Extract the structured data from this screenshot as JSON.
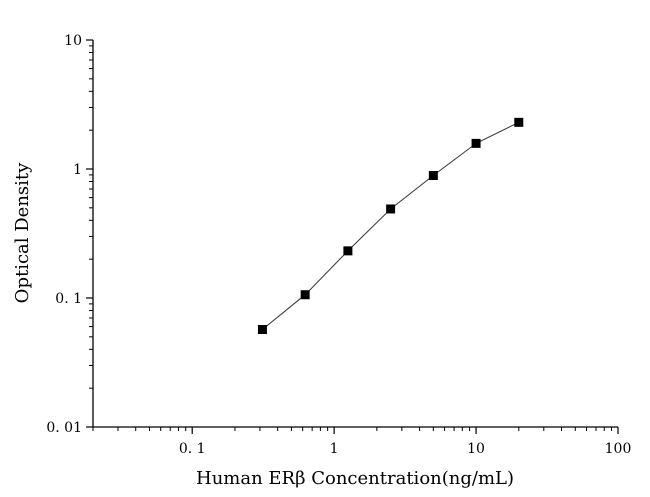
{
  "chart_data": {
    "type": "line",
    "title": "",
    "xlabel": "Human ERβ Concentration(ng/mL)",
    "ylabel": "Optical Density",
    "x_scale": "log",
    "y_scale": "log",
    "xlim": [
      0.02,
      100
    ],
    "ylim": [
      0.01,
      10
    ],
    "grid": false,
    "x_ticks": [
      0.1,
      1,
      10,
      100
    ],
    "x_tick_labels": [
      "0. 1",
      "1",
      "10",
      "100"
    ],
    "y_ticks": [
      0.01,
      0.1,
      1,
      10
    ],
    "y_tick_labels": [
      "0. 01",
      "0. 1",
      "1",
      "10"
    ],
    "series": [
      {
        "x": [
          0.3125,
          0.625,
          1.25,
          2.5,
          5,
          10,
          20
        ],
        "y": [
          0.057,
          0.106,
          0.232,
          0.49,
          0.89,
          1.58,
          2.3
        ]
      }
    ],
    "colors": {
      "line": "#333333",
      "marker": "#000000",
      "axis": "#000000"
    }
  }
}
